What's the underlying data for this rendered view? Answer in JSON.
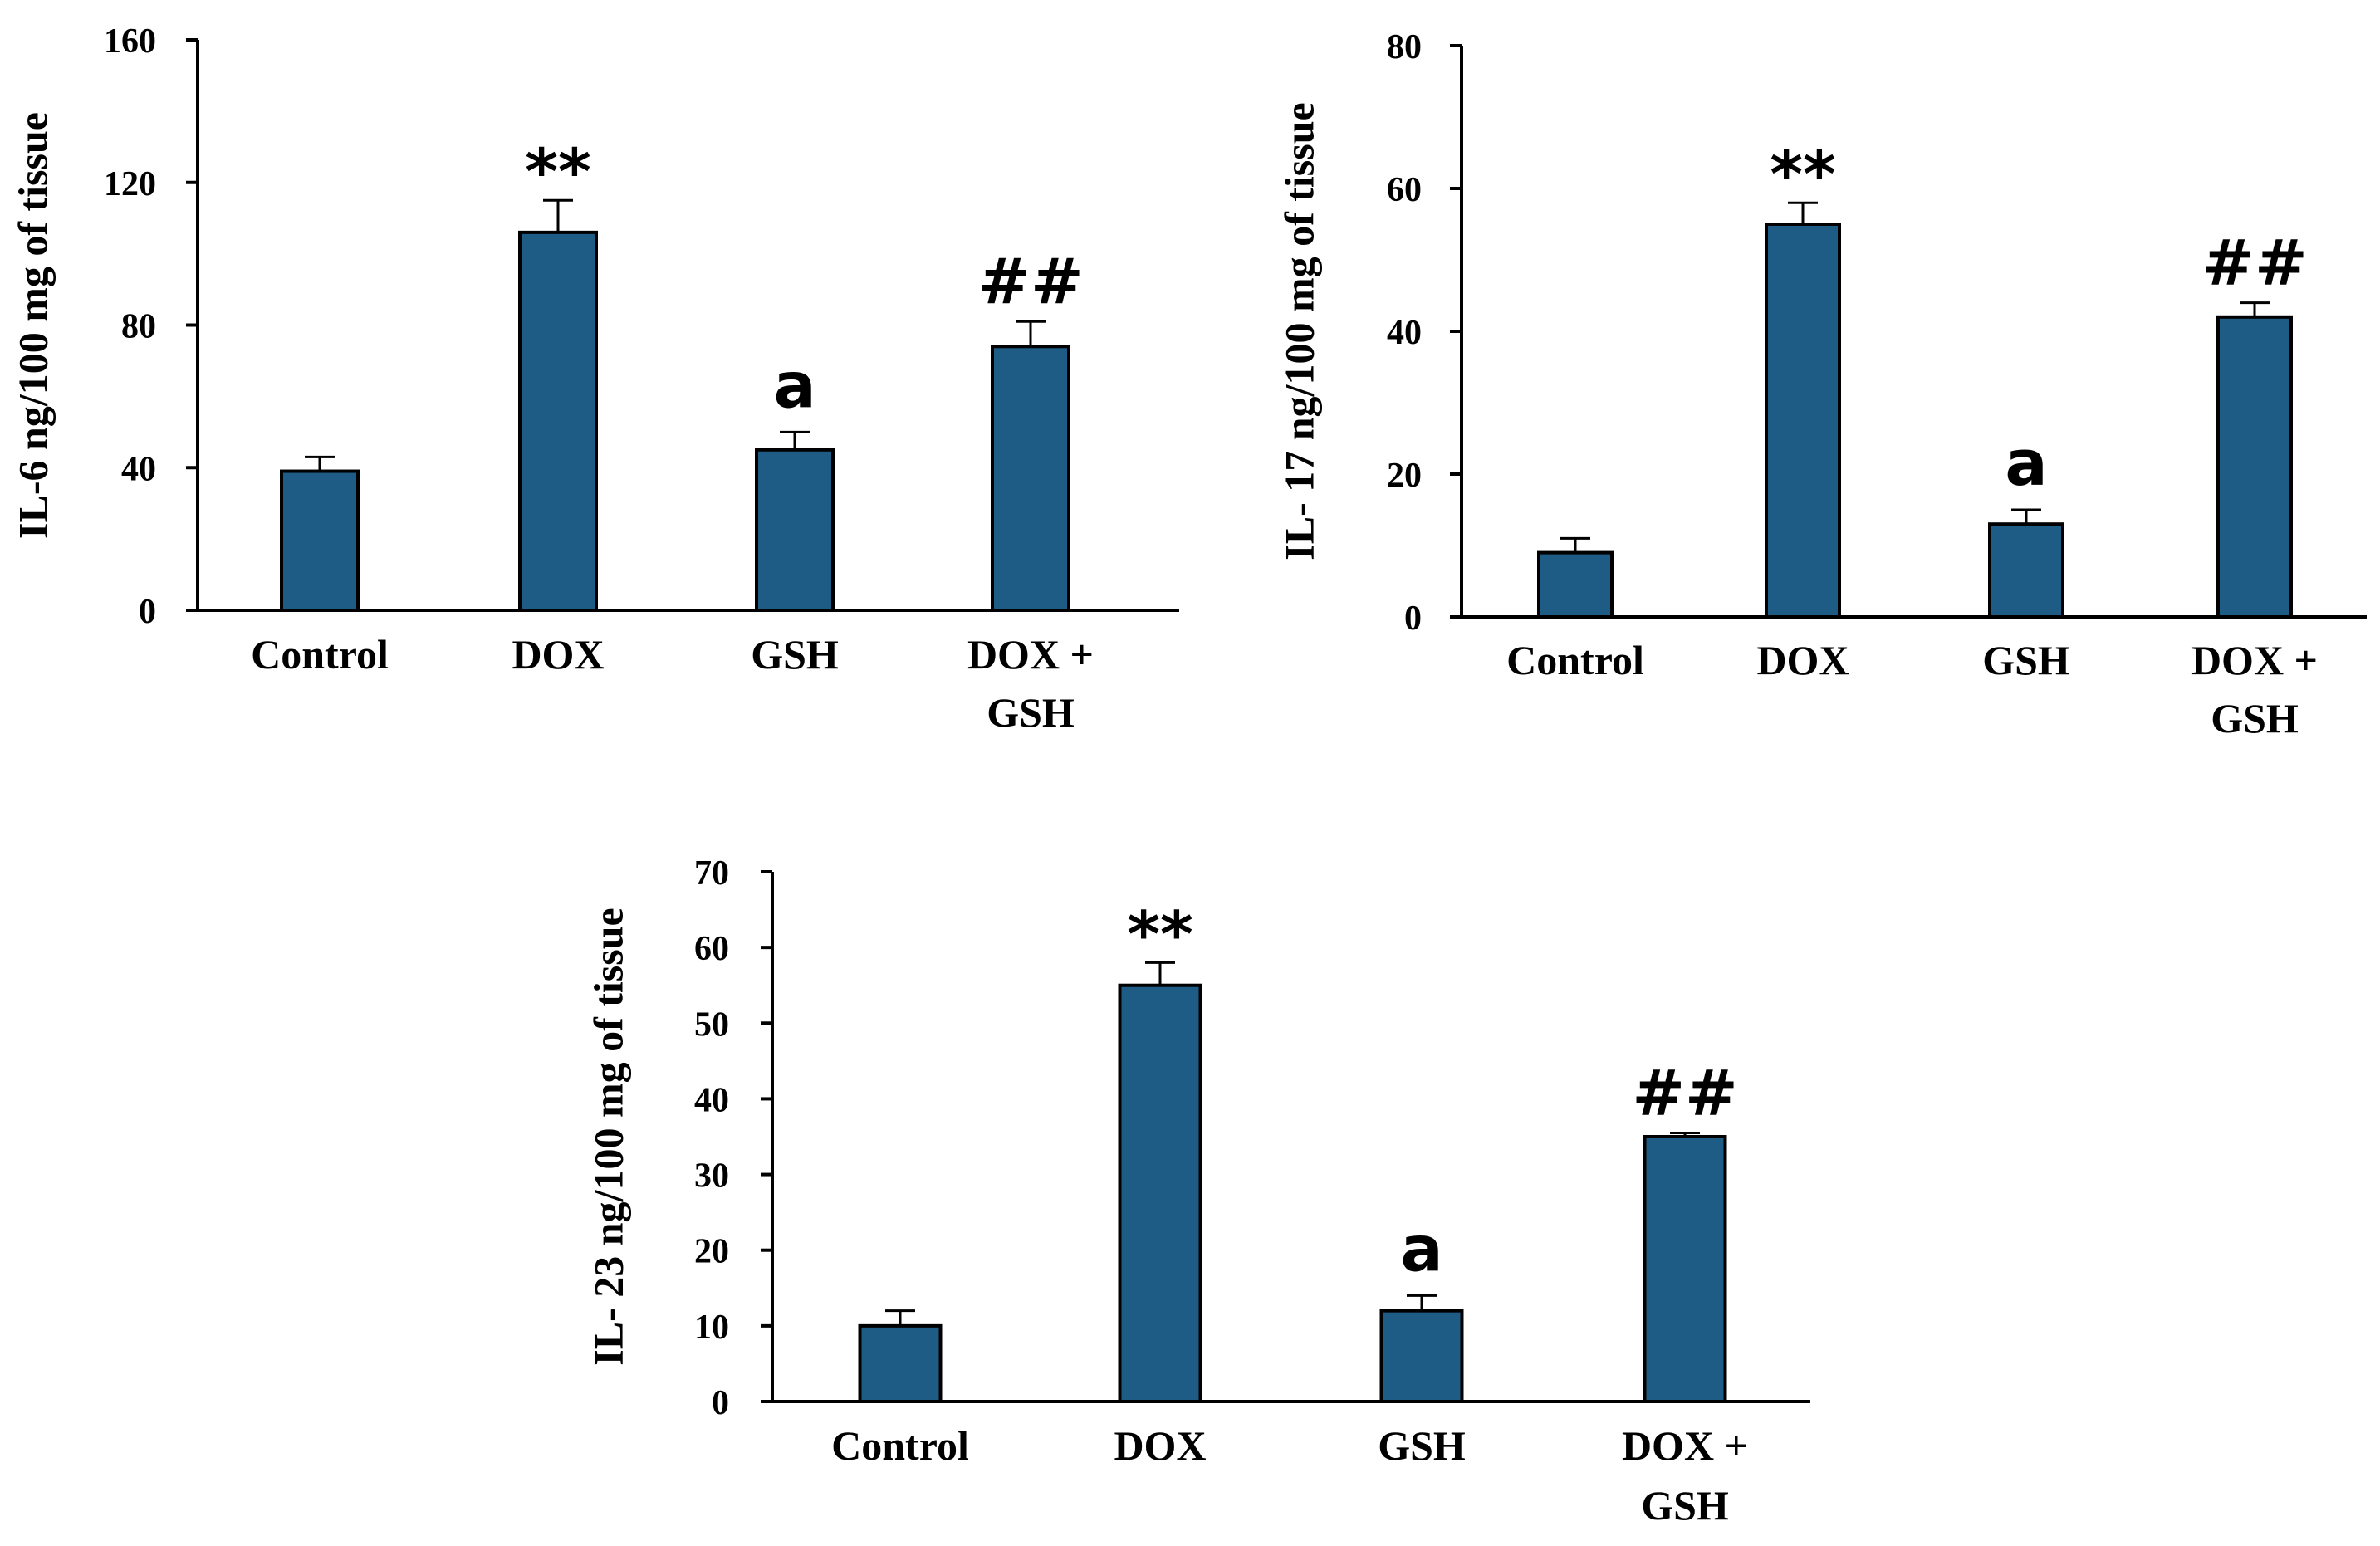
{
  "colors": {
    "bar": "#1f5c85",
    "axis": "#000000",
    "background": "#ffffff"
  },
  "chart_data": [
    {
      "type": "bar",
      "categories": [
        "Control",
        "DOX",
        "GSH",
        "DOX + GSH"
      ],
      "values": [
        39,
        106,
        45,
        74
      ],
      "errors": [
        4,
        9,
        5,
        7
      ],
      "annotations": [
        "",
        "**",
        "a",
        "##"
      ],
      "ylabel": "IL-6 ng/100 mg of tissue",
      "ylim": [
        0,
        160
      ],
      "yticks": [
        0,
        40,
        80,
        120,
        160
      ],
      "grid": false
    },
    {
      "type": "bar",
      "categories": [
        "Control",
        "DOX",
        "GSH",
        "DOX + GSH"
      ],
      "values": [
        9,
        55,
        13,
        42
      ],
      "errors": [
        2,
        3,
        2,
        2
      ],
      "annotations": [
        "",
        "**",
        "a",
        "##"
      ],
      "ylabel": "IL- 17 ng/100 mg of tissue",
      "ylim": [
        0,
        80
      ],
      "yticks": [
        0,
        20,
        40,
        60,
        80
      ],
      "grid": false
    },
    {
      "type": "bar",
      "categories": [
        "Control",
        "DOX",
        "GSH",
        "DOX + GSH"
      ],
      "values": [
        10,
        55,
        12,
        35
      ],
      "errors": [
        2,
        3,
        2,
        0.5
      ],
      "annotations": [
        "",
        "**",
        "a",
        "##"
      ],
      "ylabel": "IL- 23 ng/100 mg of tissue",
      "ylim": [
        0,
        70
      ],
      "yticks": [
        0,
        10,
        20,
        30,
        40,
        50,
        60,
        70
      ],
      "grid": false
    }
  ]
}
